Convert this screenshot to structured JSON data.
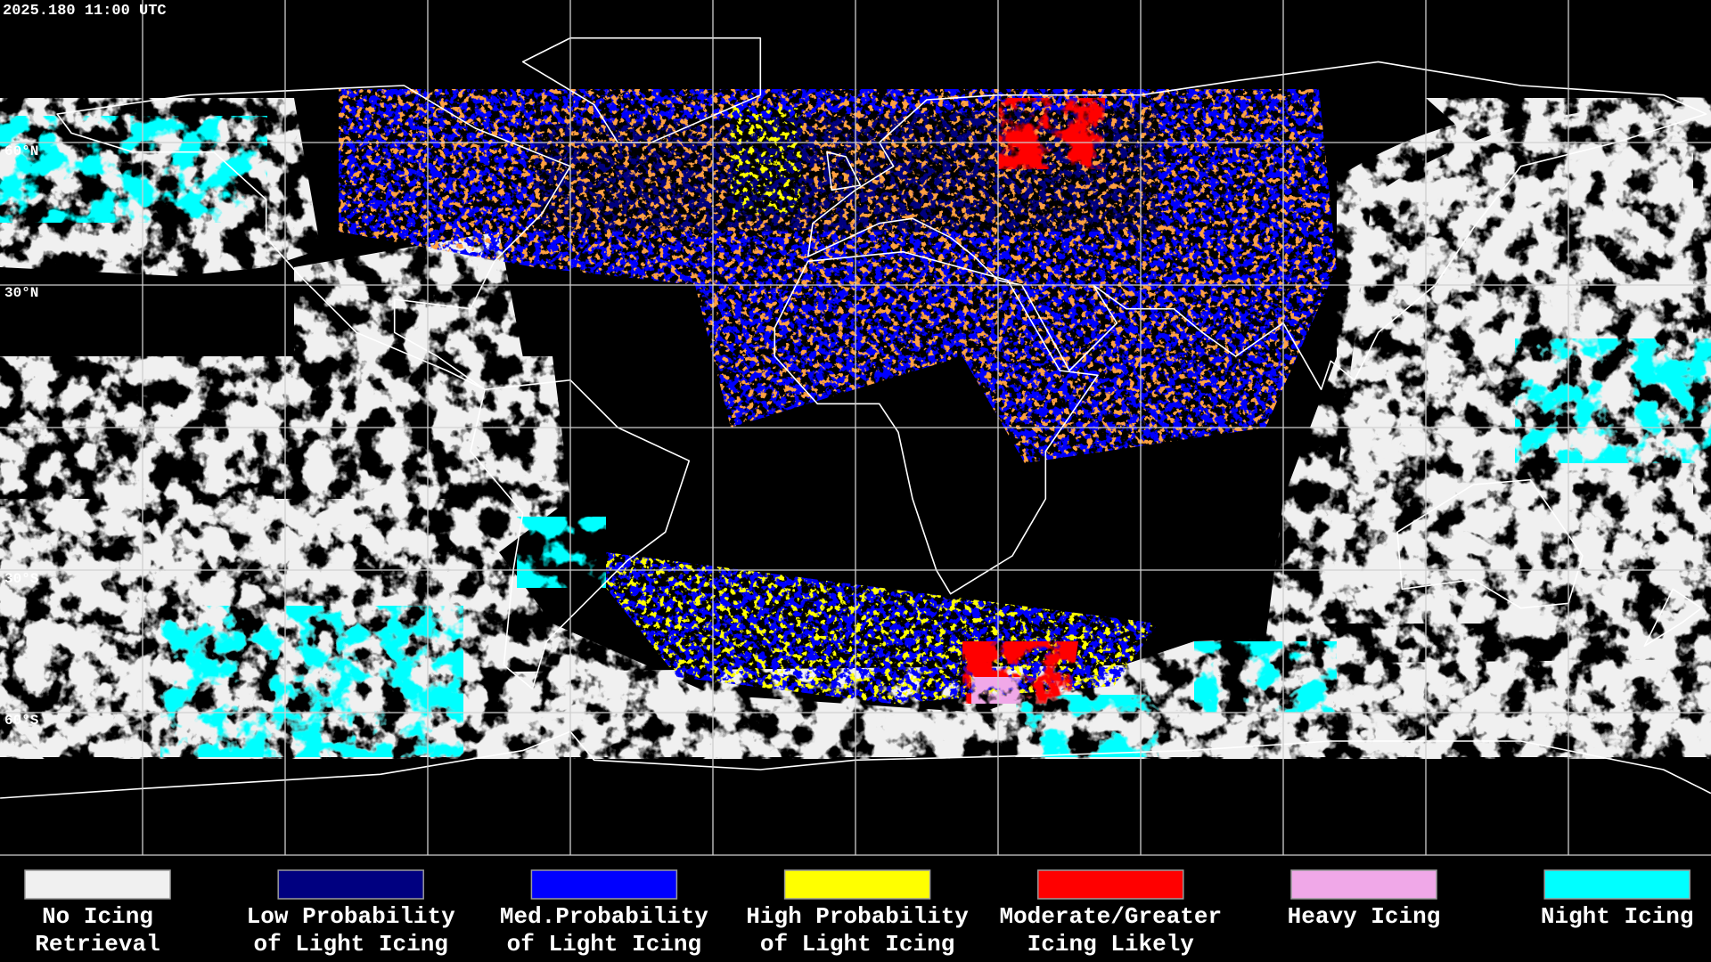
{
  "header": {
    "timestamp": "2025.180 11:00 UTC"
  },
  "map": {
    "latitude_labels": [
      "60°N",
      "30°N",
      "30°S",
      "60°S"
    ]
  },
  "legend": [
    {
      "color": "#f0f0f0",
      "lines": [
        "No Icing",
        "Retrieval"
      ]
    },
    {
      "color": "#000080",
      "lines": [
        "Low Probability",
        "of Light Icing"
      ]
    },
    {
      "color": "#0000ff",
      "lines": [
        "Med.Probability",
        "of Light Icing"
      ]
    },
    {
      "color": "#ffff00",
      "lines": [
        "High Probability",
        "of Light Icing"
      ]
    },
    {
      "color": "#ff0000",
      "lines": [
        "Moderate/Greater",
        "Icing Likely"
      ]
    },
    {
      "color": "#f0a8e8",
      "lines": [
        "Heavy Icing"
      ]
    },
    {
      "color": "#00ffff",
      "lines": [
        "Night Icing"
      ]
    }
  ]
}
